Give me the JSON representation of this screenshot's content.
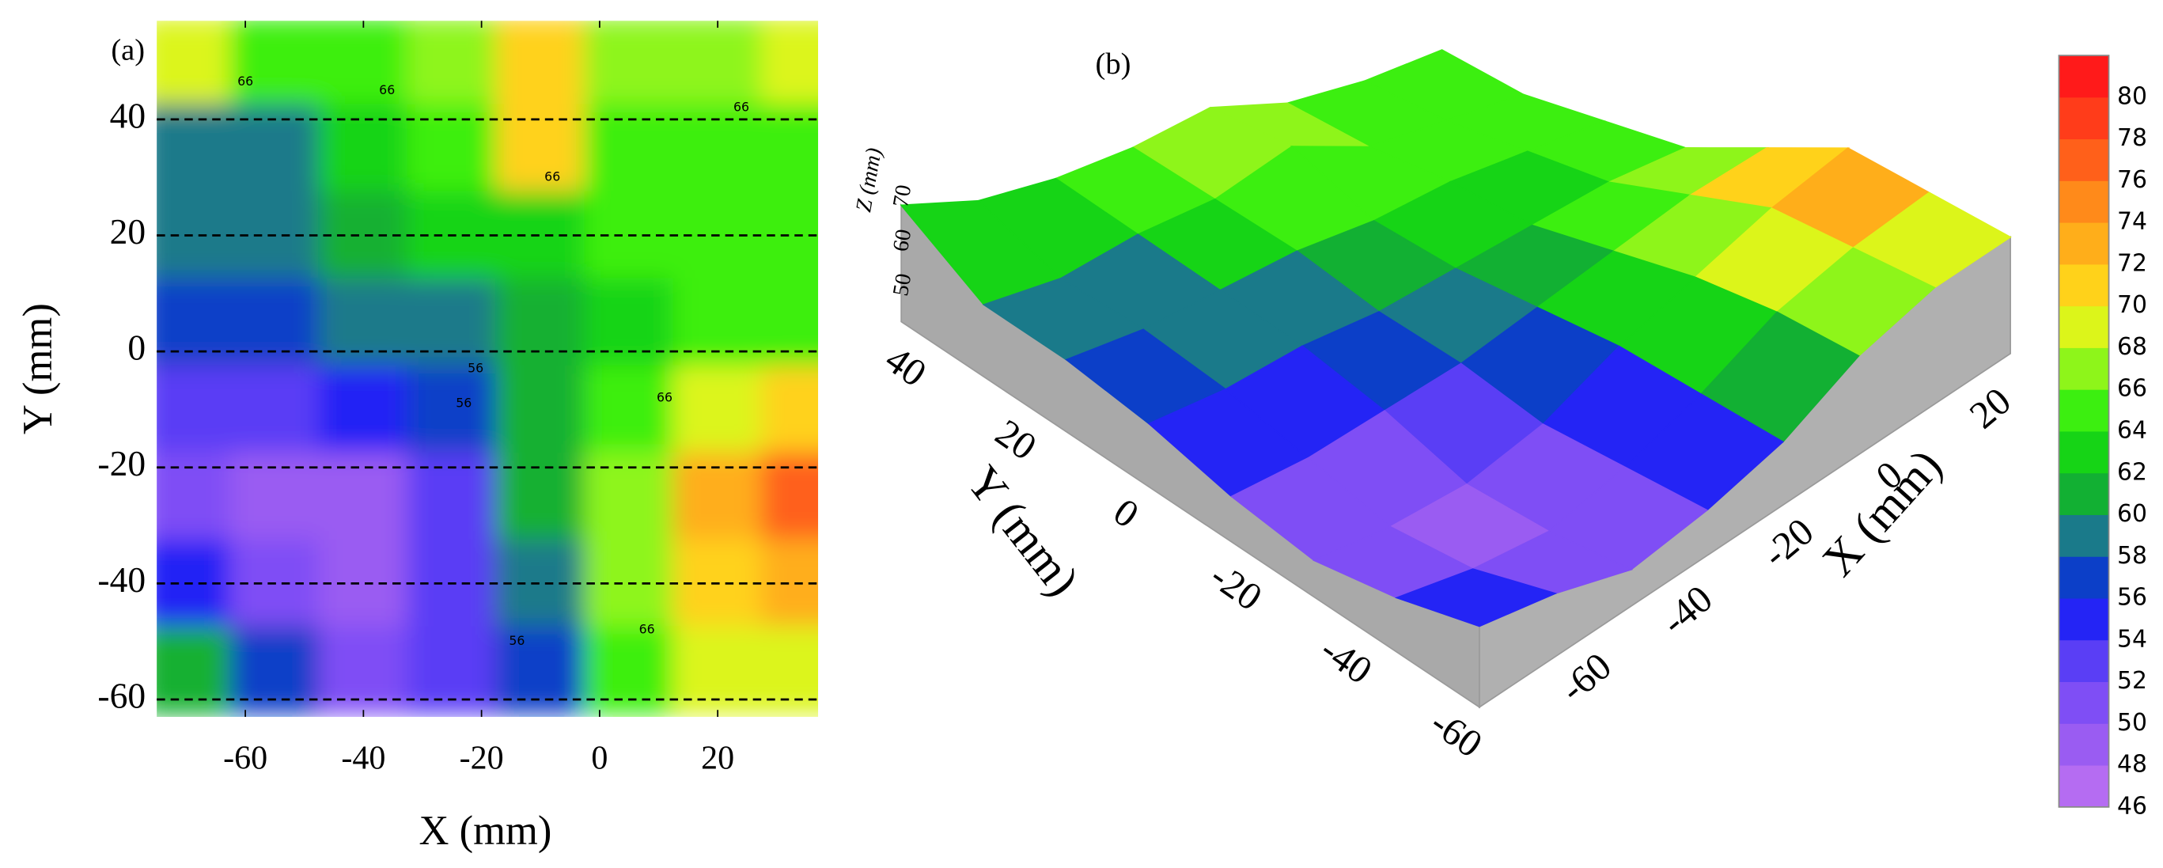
{
  "chart_data": [
    {
      "type": "contour",
      "panel_label": "(a)",
      "xlabel": "X (mm)",
      "ylabel": "Y (mm)",
      "xlim": [
        -75,
        37
      ],
      "ylim": [
        -63,
        57
      ],
      "xticks": [
        -60,
        -40,
        -20,
        0,
        20
      ],
      "yticks": [
        -60,
        -40,
        -20,
        0,
        20,
        40
      ],
      "dashed_grid": true,
      "x": [
        -70,
        -55,
        -40,
        -25,
        -10,
        5,
        20,
        35
      ],
      "y": [
        50,
        35,
        20,
        5,
        -10,
        -25,
        -40,
        -55
      ],
      "z": [
        [
          68,
          64,
          64,
          66,
          70,
          66,
          66,
          68
        ],
        [
          58,
          58,
          62,
          64,
          70,
          64,
          64,
          64
        ],
        [
          58,
          58,
          60,
          62,
          62,
          64,
          64,
          64
        ],
        [
          56,
          56,
          58,
          58,
          60,
          62,
          64,
          64
        ],
        [
          52,
          52,
          54,
          56,
          60,
          64,
          68,
          70
        ],
        [
          50,
          48,
          48,
          52,
          60,
          66,
          72,
          76
        ],
        [
          54,
          50,
          48,
          52,
          58,
          66,
          70,
          72
        ],
        [
          60,
          56,
          50,
          52,
          56,
          64,
          68,
          68
        ]
      ],
      "annotations": [
        {
          "text": "66",
          "x": -60,
          "y": 46.5
        },
        {
          "text": "66",
          "x": -36,
          "y": 45
        },
        {
          "text": "66",
          "x": -8,
          "y": 30
        },
        {
          "text": "66",
          "x": 24,
          "y": 42
        },
        {
          "text": "56",
          "x": -21,
          "y": -3
        },
        {
          "text": "56",
          "x": -23,
          "y": -9
        },
        {
          "text": "66",
          "x": 11,
          "y": -8
        },
        {
          "text": "56",
          "x": -14,
          "y": -50
        },
        {
          "text": "66",
          "x": 8,
          "y": -48
        }
      ]
    },
    {
      "type": "surface",
      "panel_label": "(b)",
      "xlabel": "X (mm)",
      "ylabel": "Y (mm)",
      "zlabel": "Z (mm)",
      "xticks": [
        -60,
        -40,
        -20,
        0,
        20
      ],
      "yticks": [
        -60,
        -40,
        -20,
        0,
        20,
        40
      ],
      "zticks": [
        50,
        60,
        70
      ],
      "colorbar": {
        "zlim": [
          46,
          82
        ],
        "zticks": [
          46,
          48,
          50,
          52,
          54,
          56,
          58,
          60,
          62,
          64,
          66,
          68,
          70,
          72,
          74,
          76,
          78,
          80
        ],
        "colors": [
          "#b56cf2",
          "#9a5cf2",
          "#7f4ef5",
          "#5a3ef5",
          "#2424f5",
          "#0c3fc8",
          "#1a7a8a",
          "#12b033",
          "#16d416",
          "#3cef10",
          "#8ef51a",
          "#dcf51a",
          "#ffd21a",
          "#ffae1a",
          "#ff8a1a",
          "#ff601a",
          "#ff3c1a",
          "#ff1a1a"
        ]
      }
    }
  ]
}
